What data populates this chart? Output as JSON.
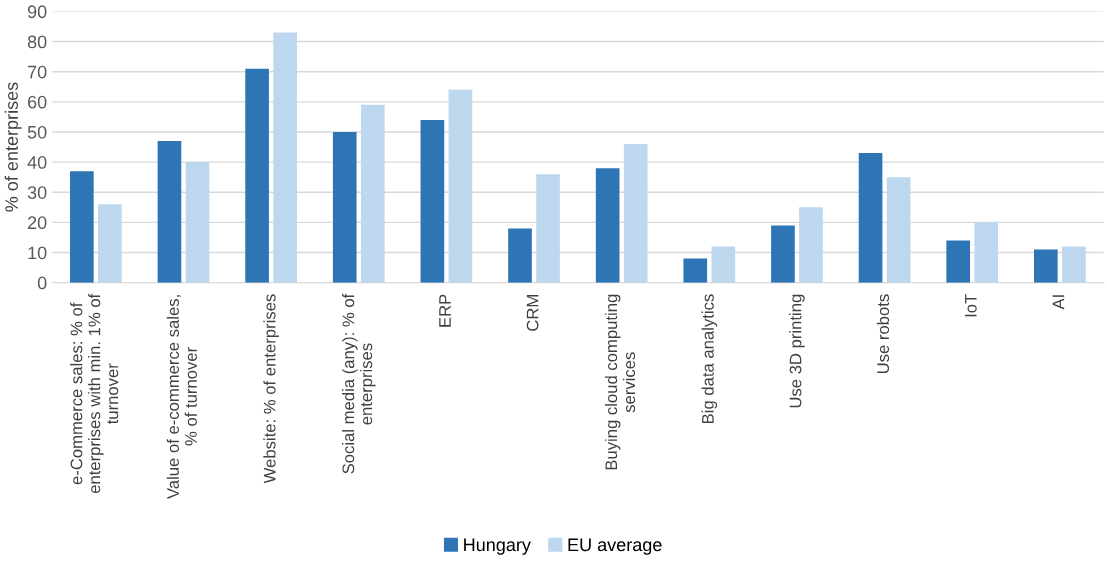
{
  "chart_data": {
    "type": "bar",
    "ylabel": "% of enterprises",
    "categories": [
      "e-Commerce sales: % of enterprises with min. 1% of turnover",
      "Value of e-commerce sales, % of turnover",
      "Website: % of enterprises",
      "Social media (any): % of enterprises",
      "ERP",
      "CRM",
      "Buying cloud computing services",
      "Big data analytics",
      "Use 3D printing",
      "Use robots",
      "IoT",
      "AI"
    ],
    "series": [
      {
        "name": "Hungary",
        "color": "#2e75b6",
        "values": [
          37,
          47,
          71,
          50,
          54,
          18,
          38,
          8,
          19,
          43,
          14,
          11
        ]
      },
      {
        "name": "EU average",
        "color": "#bdd7ee",
        "values": [
          26,
          40,
          83,
          59,
          64,
          36,
          46,
          12,
          25,
          35,
          20,
          12
        ]
      }
    ],
    "ylim": [
      0,
      90
    ],
    "yticks": [
      0,
      10,
      20,
      30,
      40,
      50,
      60,
      70,
      80,
      90
    ],
    "grid": "y",
    "legend": "bottom"
  }
}
